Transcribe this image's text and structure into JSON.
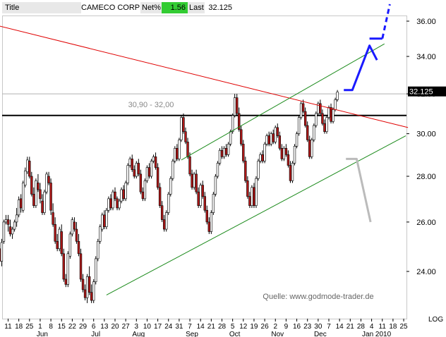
{
  "header": {
    "title_label": "Title",
    "symbol": "CAMECO CORP",
    "net_label": "Net%",
    "net_value": "1.56",
    "last_label": "Last",
    "last_value": "32.125"
  },
  "colors": {
    "up_candle": "#ffffff",
    "down_candle": "#b01818",
    "candle_outline": "#000000",
    "resistance_line": "#e00000",
    "channel_lines": "#1a8a1a",
    "support_line": "#000000",
    "forecast_up": "#1a1aff",
    "forecast_down": "#bbbbbb",
    "net_highlight": "#33cc33"
  },
  "chart_data": {
    "type": "candlestick",
    "title": "CAMECO CORP",
    "price_axis_ticks": [
      "24.00",
      "26.00",
      "28.00",
      "30.00",
      "32.00",
      "34.00",
      "36.00"
    ],
    "price_axis_label": "LOG",
    "log_scale": true,
    "ylim": [
      22.6,
      37.2
    ],
    "current_price": "32.125",
    "zone_label": "30,90 - 32,00",
    "source_label": "Quelle: www.godmode-trader.de",
    "date_ticks": [
      "11",
      "18",
      "25",
      "1",
      "8",
      "15",
      "22",
      "29",
      "6",
      "13",
      "20",
      "27",
      "3",
      "10",
      "17",
      "24",
      "31",
      "7",
      "14",
      "21",
      "28",
      "5",
      "12",
      "19",
      "26",
      "2",
      "9",
      "16",
      "23",
      "30",
      "7",
      "14",
      "21",
      "28",
      "4",
      "11",
      "18",
      "25"
    ],
    "month_labels": [
      "Jun",
      "Jul",
      "Aug",
      "Sep",
      "Oct",
      "Nov",
      "Dec",
      "Jan 2010"
    ],
    "month_tick_index": [
      3,
      8,
      12,
      17,
      21,
      25,
      29,
      34
    ],
    "support_level": 30.9,
    "resistance_level": 32.0,
    "red_trendline": [
      {
        "week": -2,
        "price": 35.9
      },
      {
        "week": 37.4,
        "price": 30.3
      }
    ],
    "channel_upper": [
      {
        "week": 16.2,
        "price": 28.75
      },
      {
        "week": 35.2,
        "price": 34.7
      }
    ],
    "channel_lower": [
      {
        "week": 9.2,
        "price": 23.1
      },
      {
        "week": 37.2,
        "price": 29.9
      }
    ],
    "bull_scenario": [
      {
        "week": 31.4,
        "price": 32.2
      },
      {
        "week": 32.2,
        "price": 32.2
      },
      {
        "week": 33.8,
        "price": 34.6
      },
      {
        "week": 34.5,
        "price": 33.8
      }
    ],
    "bull_target": [
      {
        "week": 33.8,
        "price": 35.0
      },
      {
        "week": 35.0,
        "price": 35.0
      },
      {
        "week": 35.7,
        "price": 37.0
      }
    ],
    "bear_scenario": [
      {
        "week": 31.6,
        "price": 28.8
      },
      {
        "week": 32.6,
        "price": 28.8
      },
      {
        "week": 33.9,
        "price": 26.0
      }
    ],
    "candles": [
      [
        -2.0,
        26.0,
        26.3,
        25.75,
        26.18
      ],
      [
        -1.8,
        26.15,
        26.4,
        25.9,
        26.2
      ],
      [
        -1.6,
        26.1,
        26.35,
        25.6,
        25.7
      ],
      [
        -1.4,
        25.7,
        26.0,
        24.9,
        25.0
      ],
      [
        -1.2,
        25.0,
        25.8,
        24.7,
        25.55
      ],
      [
        -1.0,
        25.4,
        25.8,
        24.4,
        24.95
      ],
      [
        -0.8,
        24.9,
        25.0,
        24.2,
        24.4
      ],
      [
        -0.6,
        24.4,
        25.3,
        24.2,
        25.15
      ],
      [
        -0.4,
        25.2,
        26.1,
        25.1,
        26.0
      ],
      [
        -0.2,
        26.0,
        26.3,
        25.9,
        26.1
      ],
      [
        0.0,
        26.1,
        26.3,
        25.6,
        25.9
      ],
      [
        0.2,
        25.8,
        26.1,
        25.4,
        25.5
      ],
      [
        0.4,
        25.5,
        25.8,
        25.3,
        25.7
      ],
      [
        0.6,
        25.7,
        26.1,
        25.6,
        26.0
      ],
      [
        0.8,
        26.0,
        26.6,
        25.8,
        26.3
      ],
      [
        1.0,
        26.3,
        27.1,
        26.2,
        26.95
      ],
      [
        1.2,
        27.0,
        27.2,
        26.4,
        26.6
      ],
      [
        1.4,
        26.5,
        27.8,
        26.4,
        27.7
      ],
      [
        1.6,
        27.6,
        28.4,
        27.5,
        28.25
      ],
      [
        1.8,
        28.2,
        28.9,
        28.1,
        28.75
      ],
      [
        2.0,
        28.7,
        28.9,
        27.9,
        28.0
      ],
      [
        2.2,
        28.0,
        28.2,
        27.1,
        27.2
      ],
      [
        2.4,
        27.2,
        27.5,
        26.6,
        26.7
      ],
      [
        2.6,
        26.7,
        27.9,
        26.6,
        27.8
      ],
      [
        2.8,
        27.7,
        28.1,
        27.3,
        27.4
      ],
      [
        3.0,
        27.4,
        27.7,
        26.8,
        27.0
      ],
      [
        3.2,
        26.9,
        27.2,
        26.3,
        26.4
      ],
      [
        3.4,
        26.4,
        27.4,
        26.3,
        27.3
      ],
      [
        3.6,
        27.3,
        28.2,
        27.2,
        28.1
      ],
      [
        3.8,
        28.0,
        28.2,
        27.6,
        27.7
      ],
      [
        4.0,
        27.7,
        27.9,
        26.3,
        26.5
      ],
      [
        4.2,
        26.4,
        26.8,
        25.8,
        25.9
      ],
      [
        4.4,
        25.9,
        26.2,
        25.1,
        25.2
      ],
      [
        4.6,
        25.2,
        25.5,
        24.8,
        24.9
      ],
      [
        4.8,
        24.9,
        25.8,
        24.8,
        25.7
      ],
      [
        5.0,
        25.6,
        25.9,
        24.6,
        24.7
      ],
      [
        5.2,
        24.7,
        24.9,
        23.6,
        23.7
      ],
      [
        5.4,
        23.7,
        23.9,
        23.4,
        23.5
      ],
      [
        5.6,
        23.5,
        24.8,
        23.4,
        24.7
      ],
      [
        5.8,
        24.6,
        25.6,
        24.5,
        25.5
      ],
      [
        6.0,
        25.5,
        26.2,
        25.4,
        26.1
      ],
      [
        6.2,
        26.0,
        26.2,
        25.6,
        25.7
      ],
      [
        6.4,
        25.7,
        26.0,
        25.1,
        25.2
      ],
      [
        6.6,
        25.2,
        25.5,
        24.6,
        24.7
      ],
      [
        6.8,
        24.7,
        24.9,
        23.6,
        23.7
      ],
      [
        7.0,
        23.7,
        23.9,
        23.2,
        23.3
      ],
      [
        7.2,
        23.3,
        23.5,
        22.9,
        23.0
      ],
      [
        7.4,
        23.0,
        23.9,
        22.8,
        23.8
      ],
      [
        7.6,
        23.8,
        24.2,
        23.1,
        23.2
      ],
      [
        7.8,
        23.2,
        23.5,
        22.8,
        22.9
      ],
      [
        8.0,
        22.9,
        23.7,
        22.8,
        23.6
      ],
      [
        8.2,
        23.6,
        24.6,
        23.5,
        24.5
      ],
      [
        8.4,
        24.5,
        25.3,
        24.4,
        25.2
      ],
      [
        8.6,
        25.2,
        25.9,
        25.1,
        25.8
      ],
      [
        8.8,
        25.7,
        26.4,
        25.6,
        26.3
      ],
      [
        9.0,
        26.3,
        26.5,
        25.7,
        25.8
      ],
      [
        9.2,
        25.8,
        26.6,
        25.7,
        26.5
      ],
      [
        9.4,
        26.5,
        27.1,
        26.4,
        27.0
      ],
      [
        9.6,
        27.0,
        27.2,
        26.5,
        26.6
      ],
      [
        9.8,
        26.6,
        27.4,
        26.5,
        27.3
      ],
      [
        10.0,
        27.3,
        27.5,
        26.9,
        27.0
      ],
      [
        10.2,
        27.0,
        27.1,
        26.5,
        26.6
      ],
      [
        10.4,
        26.6,
        27.0,
        26.5,
        26.9
      ],
      [
        10.6,
        26.9,
        27.5,
        26.8,
        27.4
      ],
      [
        10.8,
        27.4,
        27.6,
        26.9,
        27.0
      ],
      [
        11.0,
        27.0,
        27.8,
        26.9,
        27.7
      ],
      [
        11.2,
        27.7,
        28.6,
        27.6,
        28.5
      ],
      [
        11.4,
        28.5,
        28.9,
        28.4,
        28.8
      ],
      [
        11.6,
        28.8,
        29.0,
        28.2,
        28.3
      ],
      [
        11.8,
        28.3,
        28.5,
        27.9,
        28.0
      ],
      [
        12.0,
        28.0,
        28.7,
        27.9,
        28.6
      ],
      [
        12.2,
        28.6,
        28.8,
        28.0,
        28.1
      ],
      [
        12.4,
        28.1,
        28.3,
        27.2,
        27.3
      ],
      [
        12.6,
        27.3,
        27.5,
        26.9,
        27.0
      ],
      [
        12.8,
        27.0,
        27.9,
        26.9,
        27.8
      ],
      [
        13.0,
        27.8,
        28.5,
        27.7,
        28.4
      ],
      [
        13.2,
        28.4,
        28.6,
        27.9,
        28.0
      ],
      [
        13.4,
        28.0,
        28.8,
        27.9,
        28.7
      ],
      [
        13.6,
        28.7,
        29.0,
        28.6,
        28.9
      ],
      [
        13.8,
        28.9,
        29.1,
        28.3,
        28.4
      ],
      [
        14.0,
        28.4,
        28.6,
        27.4,
        27.5
      ],
      [
        14.2,
        27.5,
        27.7,
        26.6,
        26.7
      ],
      [
        14.4,
        26.7,
        26.9,
        26.0,
        26.1
      ],
      [
        14.6,
        26.1,
        26.3,
        25.6,
        25.7
      ],
      [
        14.8,
        25.7,
        26.5,
        25.6,
        26.4
      ],
      [
        15.0,
        26.4,
        27.3,
        26.3,
        27.2
      ],
      [
        15.2,
        27.2,
        28.0,
        27.1,
        27.9
      ],
      [
        15.4,
        27.9,
        28.8,
        27.8,
        28.7
      ],
      [
        15.6,
        28.7,
        29.4,
        28.6,
        29.3
      ],
      [
        15.8,
        29.3,
        29.5,
        28.7,
        28.8
      ],
      [
        16.0,
        28.8,
        29.8,
        28.7,
        29.7
      ],
      [
        16.2,
        29.7,
        30.9,
        29.6,
        30.8
      ],
      [
        16.4,
        30.8,
        31.0,
        30.0,
        30.1
      ],
      [
        16.6,
        30.1,
        30.3,
        29.5,
        29.6
      ],
      [
        16.8,
        29.6,
        29.8,
        28.8,
        28.9
      ],
      [
        17.0,
        28.9,
        29.1,
        28.0,
        28.1
      ],
      [
        17.2,
        28.1,
        28.3,
        27.4,
        27.5
      ],
      [
        17.4,
        27.5,
        28.2,
        27.4,
        28.1
      ],
      [
        17.6,
        28.1,
        28.3,
        27.2,
        27.3
      ],
      [
        17.8,
        27.3,
        27.5,
        26.6,
        26.7
      ],
      [
        18.0,
        26.7,
        27.7,
        26.6,
        27.6
      ],
      [
        18.2,
        27.6,
        27.8,
        27.0,
        27.1
      ],
      [
        18.4,
        27.1,
        27.3,
        26.4,
        26.5
      ],
      [
        18.6,
        26.5,
        26.7,
        25.9,
        26.0
      ],
      [
        18.8,
        26.0,
        26.2,
        25.5,
        25.6
      ],
      [
        19.0,
        25.6,
        26.5,
        25.5,
        26.4
      ],
      [
        19.2,
        26.4,
        27.3,
        26.3,
        27.2
      ],
      [
        19.4,
        27.2,
        28.1,
        27.1,
        28.0
      ],
      [
        19.6,
        28.0,
        28.7,
        27.9,
        28.6
      ],
      [
        19.8,
        28.6,
        29.3,
        28.5,
        29.2
      ],
      [
        20.0,
        29.2,
        29.4,
        28.8,
        28.9
      ],
      [
        20.2,
        28.9,
        29.4,
        28.8,
        29.3
      ],
      [
        20.4,
        29.3,
        29.5,
        28.9,
        29.0
      ],
      [
        20.6,
        29.0,
        29.6,
        28.9,
        29.5
      ],
      [
        20.8,
        29.5,
        30.2,
        29.4,
        30.1
      ],
      [
        21.0,
        30.1,
        31.0,
        30.0,
        30.9
      ],
      [
        21.2,
        30.9,
        32.0,
        30.8,
        31.8
      ],
      [
        21.4,
        31.8,
        32.0,
        30.9,
        31.0
      ],
      [
        21.6,
        31.0,
        31.3,
        30.1,
        30.2
      ],
      [
        21.8,
        30.2,
        30.4,
        29.4,
        29.5
      ],
      [
        22.0,
        29.5,
        29.7,
        28.6,
        28.7
      ],
      [
        22.2,
        28.7,
        28.9,
        27.7,
        27.8
      ],
      [
        22.4,
        27.8,
        28.0,
        27.0,
        27.1
      ],
      [
        22.6,
        27.1,
        27.3,
        26.6,
        26.7
      ],
      [
        22.8,
        26.7,
        27.6,
        26.6,
        27.5
      ],
      [
        23.0,
        27.5,
        27.7,
        26.6,
        26.7
      ],
      [
        23.2,
        26.7,
        28.0,
        26.6,
        27.9
      ],
      [
        23.4,
        27.9,
        28.8,
        27.8,
        28.7
      ],
      [
        23.6,
        28.7,
        29.1,
        28.6,
        29.0
      ],
      [
        23.8,
        29.0,
        29.2,
        28.6,
        28.7
      ],
      [
        24.0,
        28.7,
        29.6,
        28.6,
        29.5
      ],
      [
        24.2,
        29.5,
        30.0,
        29.4,
        29.9
      ],
      [
        24.4,
        29.9,
        30.1,
        29.4,
        29.5
      ],
      [
        24.6,
        29.5,
        30.1,
        29.4,
        30.0
      ],
      [
        24.8,
        30.0,
        30.2,
        29.5,
        29.6
      ],
      [
        25.0,
        29.6,
        30.4,
        29.5,
        30.3
      ],
      [
        25.2,
        30.3,
        30.5,
        29.8,
        29.9
      ],
      [
        25.4,
        29.9,
        30.1,
        29.2,
        29.3
      ],
      [
        25.6,
        29.3,
        29.5,
        28.7,
        28.8
      ],
      [
        25.8,
        28.8,
        29.4,
        28.7,
        29.3
      ],
      [
        26.0,
        29.3,
        29.5,
        28.9,
        29.0
      ],
      [
        26.2,
        29.0,
        29.2,
        28.4,
        28.5
      ],
      [
        26.4,
        28.5,
        28.7,
        27.7,
        27.8
      ],
      [
        26.6,
        27.8,
        28.7,
        27.7,
        28.6
      ],
      [
        26.8,
        28.6,
        29.5,
        28.5,
        29.4
      ],
      [
        27.0,
        29.4,
        30.1,
        29.3,
        30.0
      ],
      [
        27.2,
        30.0,
        30.9,
        29.9,
        30.8
      ],
      [
        27.4,
        30.8,
        31.6,
        30.7,
        31.5
      ],
      [
        27.6,
        31.5,
        31.7,
        31.0,
        31.1
      ],
      [
        27.8,
        31.1,
        31.3,
        30.3,
        30.4
      ],
      [
        28.0,
        30.4,
        30.6,
        29.6,
        29.7
      ],
      [
        28.2,
        29.7,
        29.9,
        28.8,
        28.9
      ],
      [
        28.4,
        28.9,
        29.8,
        28.8,
        29.7
      ],
      [
        28.6,
        29.7,
        30.5,
        29.6,
        30.4
      ],
      [
        28.8,
        30.4,
        31.1,
        30.3,
        31.0
      ],
      [
        29.0,
        31.0,
        31.6,
        30.9,
        31.5
      ],
      [
        29.2,
        31.5,
        31.7,
        30.9,
        31.0
      ],
      [
        29.4,
        31.0,
        31.2,
        30.4,
        30.5
      ],
      [
        29.6,
        30.5,
        30.7,
        30.0,
        30.1
      ],
      [
        29.8,
        30.1,
        30.9,
        30.0,
        30.8
      ],
      [
        30.0,
        30.8,
        31.4,
        30.7,
        31.3
      ],
      [
        30.2,
        31.3,
        31.5,
        30.5,
        30.6
      ],
      [
        30.4,
        30.6,
        31.3,
        30.5,
        31.2
      ],
      [
        30.6,
        31.2,
        31.8,
        31.1,
        31.7
      ],
      [
        30.8,
        31.7,
        32.2,
        31.6,
        32.1
      ]
    ]
  }
}
